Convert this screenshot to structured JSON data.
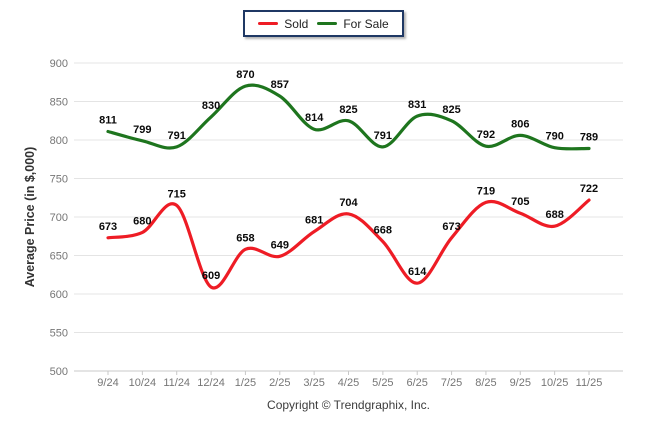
{
  "legend": {
    "items": [
      {
        "label": "Sold",
        "color": "#ee1c25"
      },
      {
        "label": "For Sale",
        "color": "#1e751e"
      }
    ]
  },
  "y_axis_title": "Average Price (in $,000)",
  "copyright": "Copyright © Trendgraphix, Inc.",
  "chart_data": {
    "type": "line",
    "title": "",
    "xlabel": "",
    "ylabel": "Average Price (in $,000)",
    "categories": [
      "9/24",
      "10/24",
      "11/24",
      "12/24",
      "1/25",
      "2/25",
      "3/25",
      "4/25",
      "5/25",
      "6/25",
      "7/25",
      "8/25",
      "9/25",
      "10/25",
      "11/25"
    ],
    "series": [
      {
        "name": "Sold",
        "color": "#ee1c25",
        "values": [
          673,
          680,
          715,
          609,
          658,
          649,
          681,
          704,
          668,
          614,
          673,
          719,
          705,
          688,
          722
        ]
      },
      {
        "name": "For Sale",
        "color": "#1e751e",
        "values": [
          811,
          799,
          791,
          830,
          870,
          857,
          814,
          825,
          791,
          831,
          825,
          792,
          806,
          790,
          789
        ]
      }
    ],
    "ylim": [
      500,
      900
    ],
    "ytick_step": 50,
    "grid": "horizontal",
    "legend_position": "top-center",
    "smooth": true,
    "point_labels": true
  }
}
